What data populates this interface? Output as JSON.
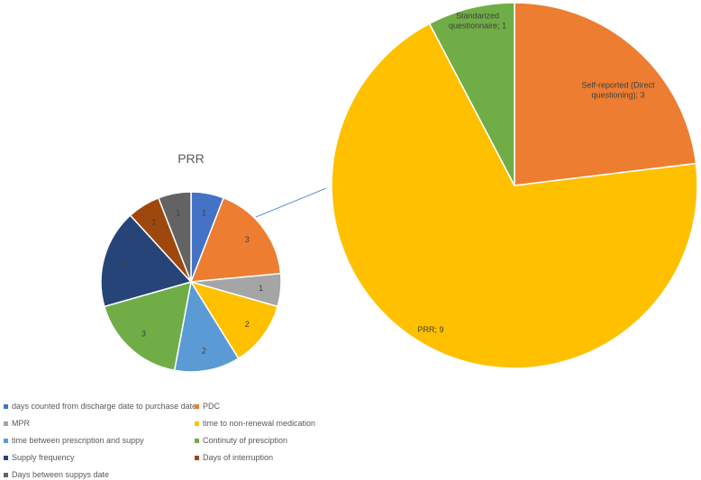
{
  "chart_data": [
    {
      "type": "pie",
      "title": "PRR",
      "slices": [
        {
          "label": "days counted from discharge date to purchase date",
          "value": 1,
          "color": "#4472C4"
        },
        {
          "label": "PDC",
          "value": 3,
          "color": "#ED7D31"
        },
        {
          "label": "MPR",
          "value": 1,
          "color": "#A5A5A5"
        },
        {
          "label": "time to non-renewal medication",
          "value": 2,
          "color": "#FFC000"
        },
        {
          "label": "time between prescription and suppy",
          "value": 2,
          "color": "#5B9BD5"
        },
        {
          "label": "Continuty of presciption",
          "value": 3,
          "color": "#70AD47"
        },
        {
          "label": "Supply frequency",
          "value": 3,
          "color": "#264478"
        },
        {
          "label": "Days of interruption",
          "value": 1,
          "color": "#9E480E"
        },
        {
          "label": "Days between suppys date",
          "value": 1,
          "color": "#636363"
        }
      ],
      "legend_position": "bottom"
    },
    {
      "type": "pie",
      "title": "",
      "slices": [
        {
          "label": "Self-reported (Direct questioning)",
          "value": 3,
          "color": "#ED7D31",
          "data_label": "Self-reported (Direct questioning); 3"
        },
        {
          "label": "PRR",
          "value": 9,
          "color": "#FFC000",
          "data_label": "PRR; 9"
        },
        {
          "label": "Standarized questionnaire",
          "value": 1,
          "color": "#70AD47",
          "data_label": "Standarized questionnaire; 1"
        }
      ]
    }
  ]
}
